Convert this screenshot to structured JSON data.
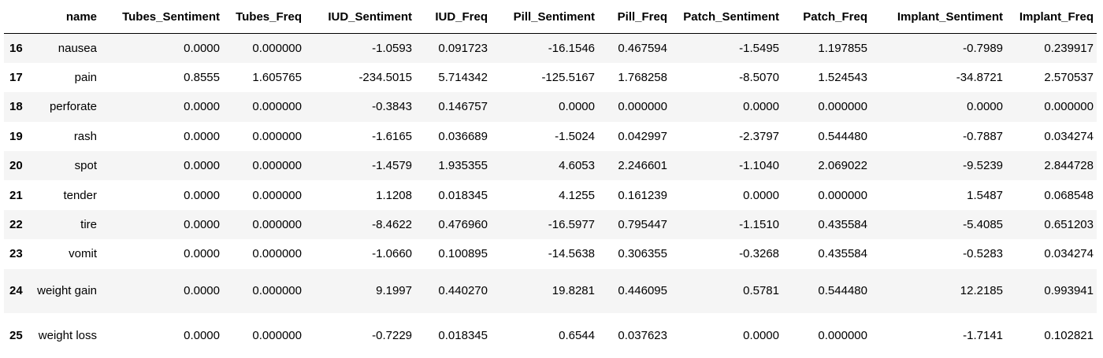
{
  "table": {
    "index_header": "",
    "columns": [
      "name",
      "Tubes_Sentiment",
      "Tubes_Freq",
      "IUD_Sentiment",
      "IUD_Freq",
      "Pill_Sentiment",
      "Pill_Freq",
      "Patch_Sentiment",
      "Patch_Freq",
      "Implant_Sentiment",
      "Implant_Freq"
    ],
    "rows": [
      {
        "index": "16",
        "cells": [
          "nausea",
          "0.0000",
          "0.000000",
          "-1.0593",
          "0.091723",
          "-16.1546",
          "0.467594",
          "-1.5495",
          "1.197855",
          "-0.7989",
          "0.239917"
        ]
      },
      {
        "index": "17",
        "cells": [
          "pain",
          "0.8555",
          "1.605765",
          "-234.5015",
          "5.714342",
          "-125.5167",
          "1.768258",
          "-8.5070",
          "1.524543",
          "-34.8721",
          "2.570537"
        ]
      },
      {
        "index": "18",
        "cells": [
          "perforate",
          "0.0000",
          "0.000000",
          "-0.3843",
          "0.146757",
          "0.0000",
          "0.000000",
          "0.0000",
          "0.000000",
          "0.0000",
          "0.000000"
        ]
      },
      {
        "index": "19",
        "cells": [
          "rash",
          "0.0000",
          "0.000000",
          "-1.6165",
          "0.036689",
          "-1.5024",
          "0.042997",
          "-2.3797",
          "0.544480",
          "-0.7887",
          "0.034274"
        ]
      },
      {
        "index": "20",
        "cells": [
          "spot",
          "0.0000",
          "0.000000",
          "-1.4579",
          "1.935355",
          "4.6053",
          "2.246601",
          "-1.1040",
          "2.069022",
          "-9.5239",
          "2.844728"
        ]
      },
      {
        "index": "21",
        "cells": [
          "tender",
          "0.0000",
          "0.000000",
          "1.1208",
          "0.018345",
          "4.1255",
          "0.161239",
          "0.0000",
          "0.000000",
          "1.5487",
          "0.068548"
        ]
      },
      {
        "index": "22",
        "cells": [
          "tire",
          "0.0000",
          "0.000000",
          "-8.4622",
          "0.476960",
          "-16.5977",
          "0.795447",
          "-1.1510",
          "0.435584",
          "-5.4085",
          "0.651203"
        ]
      },
      {
        "index": "23",
        "cells": [
          "vomit",
          "0.0000",
          "0.000000",
          "-1.0660",
          "0.100895",
          "-14.5638",
          "0.306355",
          "-0.3268",
          "0.435584",
          "-0.5283",
          "0.034274"
        ]
      },
      {
        "index": "24",
        "cells": [
          "weight gain",
          "0.0000",
          "0.000000",
          "9.1997",
          "0.440270",
          "19.8281",
          "0.446095",
          "0.5781",
          "0.544480",
          "12.2185",
          "0.993941"
        ]
      },
      {
        "index": "25",
        "cells": [
          "weight loss",
          "0.0000",
          "0.000000",
          "-0.7229",
          "0.018345",
          "0.6544",
          "0.037623",
          "0.0000",
          "0.000000",
          "-1.7141",
          "0.102821"
        ]
      }
    ]
  }
}
